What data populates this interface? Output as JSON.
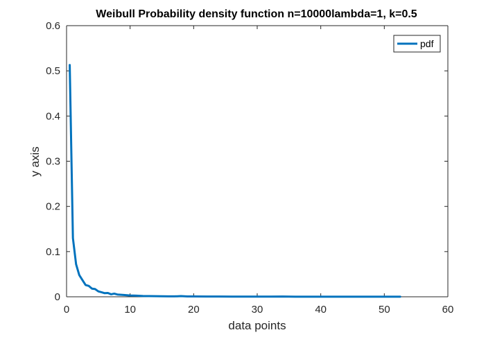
{
  "chart_data": {
    "type": "line",
    "title": "Weibull Probability density function n=10000lambda=1, k=0.5",
    "xlabel": "data points",
    "ylabel": "y axis",
    "xlim": [
      0,
      60
    ],
    "ylim": [
      0,
      0.6
    ],
    "xticks": [
      0,
      10,
      20,
      30,
      40,
      50,
      60
    ],
    "yticks": [
      0,
      0.1,
      0.2,
      0.3,
      0.4,
      0.5,
      0.6
    ],
    "xtick_labels": [
      "0",
      "10",
      "20",
      "30",
      "40",
      "50",
      "60"
    ],
    "ytick_labels": [
      "0",
      "0.1",
      "0.2",
      "0.3",
      "0.4",
      "0.5",
      "0.6"
    ],
    "grid": false,
    "legend": {
      "position": "top-right",
      "entries": [
        "pdf"
      ]
    },
    "series": [
      {
        "name": "pdf",
        "color": "#0072BD",
        "x": [
          0.5,
          1.0,
          1.5,
          2.0,
          2.5,
          3.0,
          3.5,
          4.0,
          4.5,
          5.0,
          5.5,
          6.0,
          6.5,
          7.0,
          7.5,
          8.0,
          9.0,
          10.0,
          11.0,
          12.0,
          13.0,
          14.0,
          15.0,
          16.0,
          17.0,
          18.0,
          19.0,
          20.0,
          22.0,
          24.0,
          26.0,
          28.0,
          30.0,
          32.0,
          34.0,
          36.0,
          38.0,
          40.0,
          42.0,
          44.0,
          46.0,
          48.0,
          50.0,
          52.5
        ],
        "y": [
          0.513,
          0.13,
          0.072,
          0.048,
          0.037,
          0.026,
          0.024,
          0.018,
          0.017,
          0.012,
          0.01,
          0.008,
          0.0085,
          0.0055,
          0.007,
          0.005,
          0.004,
          0.0028,
          0.0025,
          0.0018,
          0.0015,
          0.0013,
          0.0011,
          0.001,
          0.0009,
          0.0015,
          0.0008,
          0.0007,
          0.0006,
          0.0005,
          0.0004,
          0.0004,
          0.0003,
          0.0003,
          0.0006,
          0.0002,
          0.0002,
          0.0002,
          0.0002,
          0.0001,
          0.0001,
          0.0001,
          0.0001,
          0.0001
        ]
      }
    ]
  },
  "colors": {
    "series": "#0072BD",
    "axis": "#262626",
    "text": "#262626",
    "background": "#ffffff"
  }
}
